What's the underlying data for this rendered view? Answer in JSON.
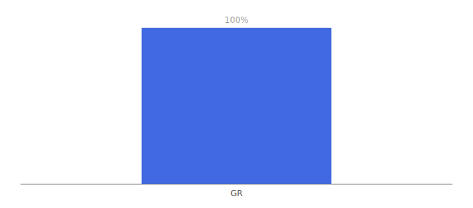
{
  "chart_data": {
    "type": "bar",
    "categories": [
      "GR"
    ],
    "values": [
      100
    ],
    "value_labels": [
      "100%"
    ],
    "color": "#4169E1",
    "ylim": [
      0,
      100
    ],
    "grid": false,
    "data_labels": true,
    "tick_labels": "x"
  }
}
